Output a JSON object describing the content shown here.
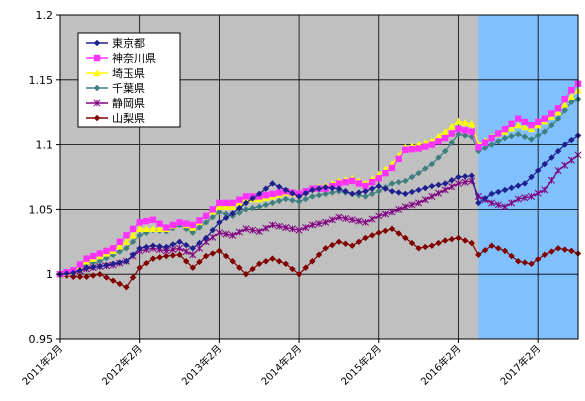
{
  "chart_data": {
    "type": "line",
    "title": "",
    "xlabel": "",
    "ylabel": "",
    "ylim": [
      0.95,
      1.2
    ],
    "yticks": [
      "0.95",
      "1",
      "1.05",
      "1.1",
      "1.15",
      "1.2"
    ],
    "x_tick_labels": [
      "2011年2月",
      "2012年2月",
      "2013年2月",
      "2014年2月",
      "2015年2月",
      "2016年2月",
      "2017年2月"
    ],
    "x_start": "2011年2月",
    "x_end": "2017年8月",
    "n_points": 79,
    "highlight_start": "2016年5月",
    "plot_background": "#c0c0c0",
    "highlight_color": "#80c0ff",
    "grid": true,
    "legend_position": "top-left",
    "series": [
      {
        "name": "東京都",
        "color": "#1f1f8f",
        "marker": "diamond",
        "keypoints": [
          [
            0,
            1.0
          ],
          [
            2,
            1.001
          ],
          [
            4,
            1.005
          ],
          [
            6,
            1.006
          ],
          [
            8,
            1.008
          ],
          [
            10,
            1.01
          ],
          [
            12,
            1.02
          ],
          [
            14,
            1.022
          ],
          [
            16,
            1.021
          ],
          [
            18,
            1.025
          ],
          [
            20,
            1.02
          ],
          [
            22,
            1.028
          ],
          [
            24,
            1.04
          ],
          [
            26,
            1.047
          ],
          [
            28,
            1.055
          ],
          [
            30,
            1.062
          ],
          [
            32,
            1.07
          ],
          [
            34,
            1.065
          ],
          [
            36,
            1.06
          ],
          [
            38,
            1.065
          ],
          [
            40,
            1.067
          ],
          [
            42,
            1.066
          ],
          [
            44,
            1.062
          ],
          [
            46,
            1.064
          ],
          [
            48,
            1.068
          ],
          [
            50,
            1.064
          ],
          [
            52,
            1.062
          ],
          [
            54,
            1.065
          ],
          [
            56,
            1.068
          ],
          [
            58,
            1.07
          ],
          [
            60,
            1.075
          ],
          [
            62,
            1.076
          ],
          [
            63,
            1.055
          ],
          [
            65,
            1.062
          ],
          [
            67,
            1.065
          ],
          [
            70,
            1.07
          ],
          [
            72,
            1.08
          ],
          [
            74,
            1.09
          ],
          [
            76,
            1.1
          ],
          [
            78,
            1.107
          ]
        ]
      },
      {
        "name": "神奈川県",
        "color": "#ff33ff",
        "marker": "square",
        "keypoints": [
          [
            0,
            1.0
          ],
          [
            2,
            1.003
          ],
          [
            4,
            1.012
          ],
          [
            6,
            1.016
          ],
          [
            8,
            1.02
          ],
          [
            10,
            1.03
          ],
          [
            12,
            1.04
          ],
          [
            14,
            1.042
          ],
          [
            16,
            1.036
          ],
          [
            18,
            1.04
          ],
          [
            20,
            1.038
          ],
          [
            22,
            1.045
          ],
          [
            24,
            1.055
          ],
          [
            26,
            1.055
          ],
          [
            28,
            1.06
          ],
          [
            30,
            1.06
          ],
          [
            32,
            1.062
          ],
          [
            34,
            1.064
          ],
          [
            36,
            1.062
          ],
          [
            38,
            1.066
          ],
          [
            40,
            1.066
          ],
          [
            42,
            1.07
          ],
          [
            44,
            1.072
          ],
          [
            46,
            1.068
          ],
          [
            48,
            1.074
          ],
          [
            50,
            1.082
          ],
          [
            52,
            1.096
          ],
          [
            54,
            1.097
          ],
          [
            56,
            1.1
          ],
          [
            58,
            1.105
          ],
          [
            60,
            1.112
          ],
          [
            62,
            1.11
          ],
          [
            63,
            1.098
          ],
          [
            65,
            1.105
          ],
          [
            67,
            1.112
          ],
          [
            69,
            1.12
          ],
          [
            71,
            1.115
          ],
          [
            73,
            1.12
          ],
          [
            75,
            1.128
          ],
          [
            77,
            1.142
          ],
          [
            78,
            1.147
          ]
        ]
      },
      {
        "name": "埼玉県",
        "color": "#ffff00",
        "marker": "triangle",
        "keypoints": [
          [
            0,
            1.0
          ],
          [
            2,
            1.002
          ],
          [
            4,
            1.01
          ],
          [
            6,
            1.014
          ],
          [
            8,
            1.018
          ],
          [
            10,
            1.025
          ],
          [
            12,
            1.035
          ],
          [
            14,
            1.035
          ],
          [
            16,
            1.035
          ],
          [
            18,
            1.04
          ],
          [
            20,
            1.036
          ],
          [
            22,
            1.045
          ],
          [
            24,
            1.052
          ],
          [
            26,
            1.052
          ],
          [
            28,
            1.058
          ],
          [
            30,
            1.058
          ],
          [
            32,
            1.06
          ],
          [
            34,
            1.063
          ],
          [
            36,
            1.062
          ],
          [
            38,
            1.066
          ],
          [
            40,
            1.068
          ],
          [
            42,
            1.072
          ],
          [
            44,
            1.074
          ],
          [
            46,
            1.07
          ],
          [
            48,
            1.077
          ],
          [
            50,
            1.085
          ],
          [
            52,
            1.098
          ],
          [
            54,
            1.1
          ],
          [
            56,
            1.103
          ],
          [
            58,
            1.11
          ],
          [
            60,
            1.118
          ],
          [
            62,
            1.116
          ],
          [
            63,
            1.1
          ],
          [
            65,
            1.106
          ],
          [
            67,
            1.11
          ],
          [
            69,
            1.115
          ],
          [
            71,
            1.112
          ],
          [
            73,
            1.118
          ],
          [
            75,
            1.125
          ],
          [
            77,
            1.137
          ],
          [
            78,
            1.142
          ]
        ]
      },
      {
        "name": "千葉県",
        "color": "#3f7f7f",
        "marker": "diamond",
        "keypoints": [
          [
            0,
            1.0
          ],
          [
            2,
            1.001
          ],
          [
            4,
            1.008
          ],
          [
            6,
            1.01
          ],
          [
            8,
            1.015
          ],
          [
            10,
            1.02
          ],
          [
            12,
            1.03
          ],
          [
            14,
            1.034
          ],
          [
            16,
            1.033
          ],
          [
            18,
            1.038
          ],
          [
            20,
            1.032
          ],
          [
            22,
            1.04
          ],
          [
            24,
            1.048
          ],
          [
            26,
            1.045
          ],
          [
            28,
            1.05
          ],
          [
            30,
            1.052
          ],
          [
            32,
            1.055
          ],
          [
            34,
            1.058
          ],
          [
            36,
            1.056
          ],
          [
            38,
            1.06
          ],
          [
            40,
            1.062
          ],
          [
            42,
            1.064
          ],
          [
            44,
            1.062
          ],
          [
            46,
            1.06
          ],
          [
            48,
            1.064
          ],
          [
            50,
            1.07
          ],
          [
            52,
            1.072
          ],
          [
            54,
            1.078
          ],
          [
            56,
            1.085
          ],
          [
            58,
            1.095
          ],
          [
            60,
            1.108
          ],
          [
            62,
            1.106
          ],
          [
            63,
            1.095
          ],
          [
            65,
            1.1
          ],
          [
            67,
            1.105
          ],
          [
            69,
            1.108
          ],
          [
            71,
            1.104
          ],
          [
            73,
            1.11
          ],
          [
            75,
            1.12
          ],
          [
            77,
            1.133
          ],
          [
            78,
            1.135
          ]
        ]
      },
      {
        "name": "静岡県",
        "color": "#800080",
        "marker": "star",
        "keypoints": [
          [
            0,
            1.0
          ],
          [
            2,
            1.001
          ],
          [
            4,
            1.004
          ],
          [
            6,
            1.006
          ],
          [
            8,
            1.007
          ],
          [
            10,
            1.01
          ],
          [
            12,
            1.018
          ],
          [
            14,
            1.02
          ],
          [
            16,
            1.018
          ],
          [
            18,
            1.02
          ],
          [
            20,
            1.015
          ],
          [
            22,
            1.025
          ],
          [
            24,
            1.032
          ],
          [
            26,
            1.03
          ],
          [
            28,
            1.035
          ],
          [
            30,
            1.033
          ],
          [
            32,
            1.038
          ],
          [
            34,
            1.036
          ],
          [
            36,
            1.034
          ],
          [
            38,
            1.038
          ],
          [
            40,
            1.04
          ],
          [
            42,
            1.044
          ],
          [
            44,
            1.042
          ],
          [
            46,
            1.04
          ],
          [
            48,
            1.045
          ],
          [
            50,
            1.048
          ],
          [
            52,
            1.052
          ],
          [
            54,
            1.055
          ],
          [
            56,
            1.06
          ],
          [
            58,
            1.065
          ],
          [
            60,
            1.07
          ],
          [
            62,
            1.072
          ],
          [
            63,
            1.06
          ],
          [
            65,
            1.055
          ],
          [
            67,
            1.052
          ],
          [
            69,
            1.058
          ],
          [
            71,
            1.06
          ],
          [
            73,
            1.065
          ],
          [
            75,
            1.08
          ],
          [
            77,
            1.088
          ],
          [
            78,
            1.092
          ]
        ]
      },
      {
        "name": "山梨県",
        "color": "#800000",
        "marker": "diamond",
        "keypoints": [
          [
            0,
            1.0
          ],
          [
            2,
            0.998
          ],
          [
            4,
            0.998
          ],
          [
            6,
            1.0
          ],
          [
            8,
            0.995
          ],
          [
            10,
            0.99
          ],
          [
            12,
            1.005
          ],
          [
            14,
            1.012
          ],
          [
            16,
            1.014
          ],
          [
            18,
            1.015
          ],
          [
            20,
            1.005
          ],
          [
            22,
            1.014
          ],
          [
            24,
            1.018
          ],
          [
            26,
            1.01
          ],
          [
            28,
            1.0
          ],
          [
            30,
            1.008
          ],
          [
            32,
            1.012
          ],
          [
            34,
            1.008
          ],
          [
            36,
            1.0
          ],
          [
            38,
            1.01
          ],
          [
            40,
            1.02
          ],
          [
            42,
            1.025
          ],
          [
            44,
            1.022
          ],
          [
            46,
            1.028
          ],
          [
            48,
            1.032
          ],
          [
            50,
            1.035
          ],
          [
            52,
            1.028
          ],
          [
            54,
            1.02
          ],
          [
            56,
            1.022
          ],
          [
            58,
            1.026
          ],
          [
            60,
            1.028
          ],
          [
            62,
            1.024
          ],
          [
            63,
            1.015
          ],
          [
            65,
            1.022
          ],
          [
            67,
            1.018
          ],
          [
            69,
            1.01
          ],
          [
            71,
            1.008
          ],
          [
            73,
            1.015
          ],
          [
            75,
            1.02
          ],
          [
            77,
            1.018
          ],
          [
            78,
            1.016
          ]
        ]
      }
    ]
  }
}
